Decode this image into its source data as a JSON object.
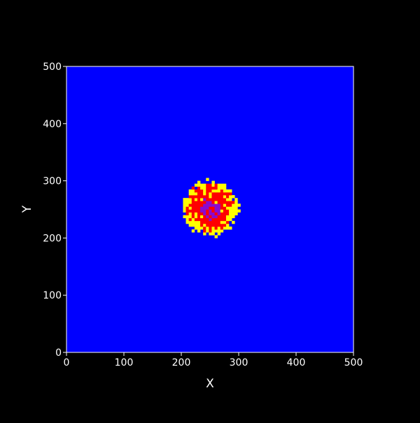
{
  "chart_data": {
    "type": "heatmap",
    "title": "",
    "xlabel": "X",
    "ylabel": "Y",
    "xlim": [
      0,
      500
    ],
    "ylim": [
      0,
      500
    ],
    "x_ticks": [
      "0",
      "100",
      "200",
      "300",
      "400",
      "500"
    ],
    "y_ticks": [
      "0",
      "100",
      "200",
      "300",
      "400",
      "500"
    ],
    "grid": false,
    "legend": "none",
    "colors": {
      "background": "#0000ff",
      "level_1": "#ffff00",
      "level_2": "#ff0000",
      "level_3": "#8b0bd0"
    },
    "blob": {
      "center": [
        250,
        252
      ],
      "radius": 47,
      "cell_size": 5
    },
    "value_bands": [
      {
        "level": 1,
        "r_min": 0.78,
        "r_max": 1.0
      },
      {
        "level": 2,
        "r_min": 0.38,
        "r_max": 0.78
      },
      {
        "level": 3,
        "r_min": 0.0,
        "r_max": 0.38
      }
    ]
  }
}
